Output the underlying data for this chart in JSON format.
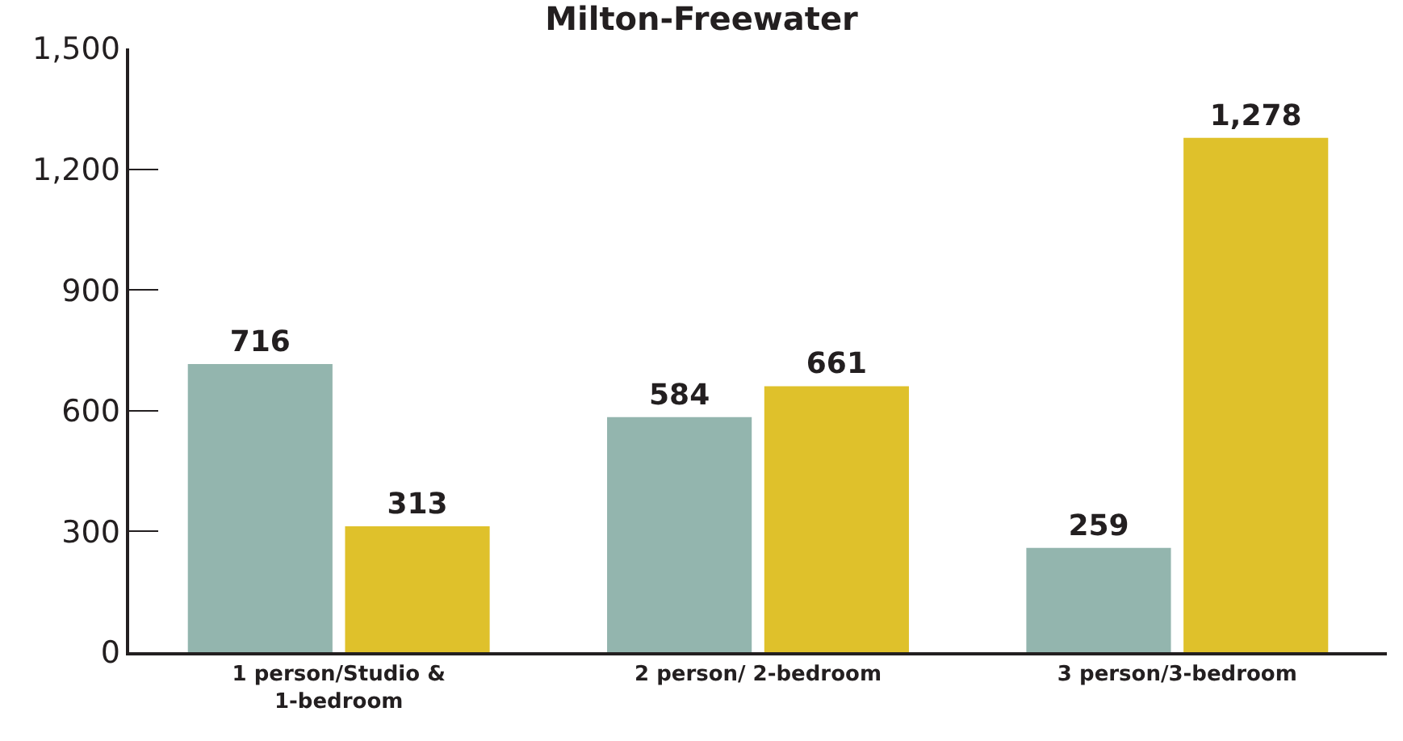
{
  "chart_data": {
    "type": "bar",
    "title": "Milton-Freewater",
    "categories": [
      "1 person/Studio & 1-bedroom",
      "2 person/ 2-bedroom",
      "3 person/3-bedroom"
    ],
    "series": [
      {
        "color": "#93b5ae",
        "values": [
          716,
          584,
          259
        ],
        "value_labels": [
          "716",
          "584",
          "259"
        ]
      },
      {
        "color": "#dfc12b",
        "values": [
          313,
          661,
          1278
        ],
        "value_labels": [
          "313",
          "661",
          "1,278"
        ]
      }
    ],
    "ylim": [
      0,
      1500
    ],
    "yticks": [
      {
        "value": 0,
        "label": "0"
      },
      {
        "value": 300,
        "label": "300"
      },
      {
        "value": 600,
        "label": "600"
      },
      {
        "value": 900,
        "label": "900"
      },
      {
        "value": 1200,
        "label": "1,200"
      },
      {
        "value": 1500,
        "label": "1,500"
      }
    ]
  }
}
